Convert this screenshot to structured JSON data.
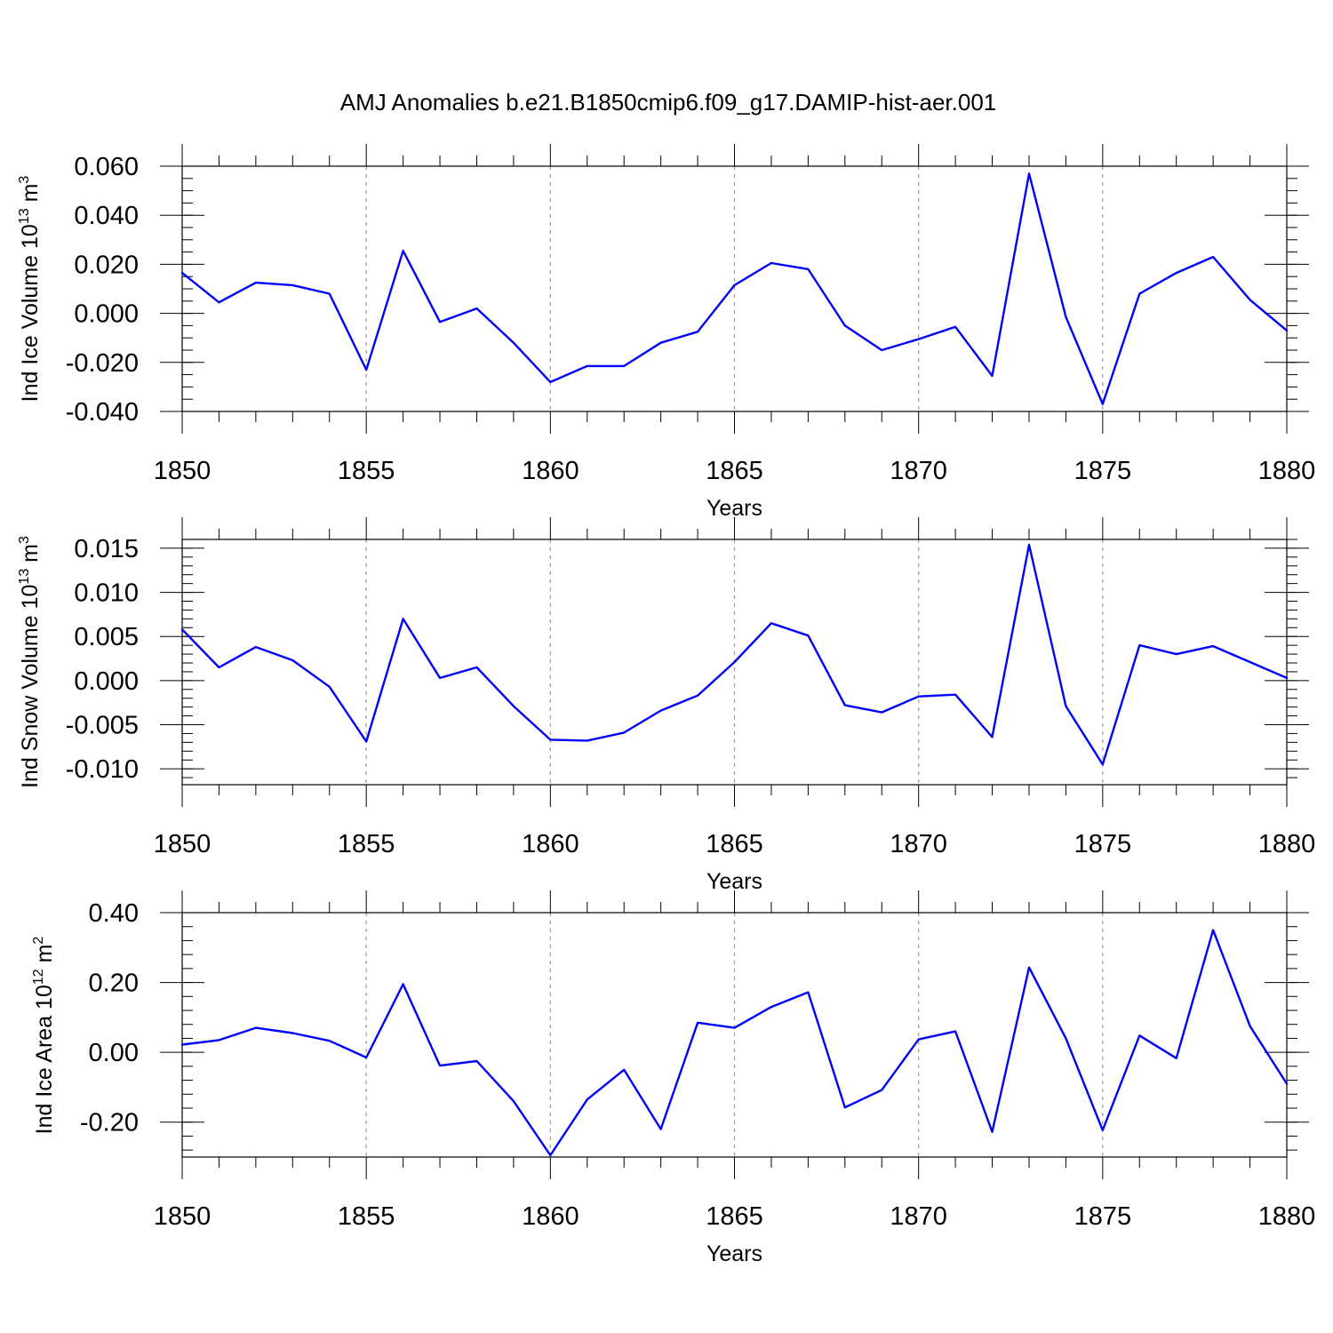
{
  "title": "AMJ Anomalies b.e21.B1850cmip6.f09_g17.DAMIP-hist-aer.001",
  "colors": {
    "line": "#0000ff",
    "grid": "#999999",
    "axes": "#000000"
  },
  "chart_data": [
    {
      "type": "line",
      "xlabel": "Years",
      "ylabel": {
        "prefix": "Ind Ice Volume 10",
        "exponent": "13",
        "unit": " m",
        "unit_exponent": "3"
      },
      "xlim": [
        1850,
        1880
      ],
      "ylim": [
        -0.04,
        0.06
      ],
      "xticks": [
        1850,
        1855,
        1860,
        1865,
        1870,
        1875,
        1880
      ],
      "xtick_labels": [
        "1850",
        "1855",
        "1860",
        "1865",
        "1870",
        "1875",
        "1880"
      ],
      "yticks": [
        0.06,
        0.04,
        0.02,
        0.0,
        -0.02,
        -0.04
      ],
      "ytick_labels": [
        "0.060",
        "0.040",
        "0.020",
        "0.000",
        "-0.020",
        "-0.040"
      ],
      "y_minor_step": 0.005,
      "grid": "dashed vertical at major x ticks",
      "x": [
        1850,
        1851,
        1852,
        1853,
        1854,
        1855,
        1856,
        1857,
        1858,
        1859,
        1860,
        1861,
        1862,
        1863,
        1864,
        1865,
        1866,
        1867,
        1868,
        1869,
        1870,
        1871,
        1872,
        1873,
        1874,
        1875,
        1876,
        1877,
        1878,
        1879,
        1880
      ],
      "values": [
        0.0165,
        0.0045,
        0.0125,
        0.0115,
        0.008,
        -0.023,
        0.0255,
        -0.0035,
        0.002,
        -0.012,
        -0.028,
        -0.0215,
        -0.0215,
        -0.012,
        -0.0075,
        0.0115,
        0.0205,
        0.018,
        -0.005,
        -0.015,
        -0.0105,
        -0.0055,
        -0.0255,
        0.057,
        -0.0015,
        -0.037,
        0.008,
        0.0165,
        0.023,
        0.0055,
        -0.007
      ]
    },
    {
      "type": "line",
      "xlabel": "Years",
      "ylabel": {
        "prefix": "Ind Snow Volume 10",
        "exponent": "13",
        "unit": " m",
        "unit_exponent": "3"
      },
      "xlim": [
        1850,
        1880
      ],
      "ylim": [
        -0.0118,
        0.016
      ],
      "xticks": [
        1850,
        1855,
        1860,
        1865,
        1870,
        1875,
        1880
      ],
      "xtick_labels": [
        "1850",
        "1855",
        "1860",
        "1865",
        "1870",
        "1875",
        "1880"
      ],
      "yticks": [
        0.015,
        0.01,
        0.005,
        0.0,
        -0.005,
        -0.01
      ],
      "ytick_labels": [
        "0.015",
        "0.010",
        "0.005",
        "0.000",
        "-0.005",
        "-0.010"
      ],
      "y_minor_step": 0.001,
      "grid": "dashed vertical at major x ticks",
      "x": [
        1850,
        1851,
        1852,
        1853,
        1854,
        1855,
        1856,
        1857,
        1858,
        1859,
        1860,
        1861,
        1862,
        1863,
        1864,
        1865,
        1866,
        1867,
        1868,
        1869,
        1870,
        1871,
        1872,
        1873,
        1874,
        1875,
        1876,
        1877,
        1878,
        1879,
        1880
      ],
      "values": [
        0.0058,
        0.0015,
        0.0038,
        0.0023,
        -0.0007,
        -0.0069,
        0.007,
        0.0003,
        0.0015,
        -0.0029,
        -0.0067,
        -0.0068,
        -0.0059,
        -0.0034,
        -0.0017,
        0.0021,
        0.0065,
        0.0051,
        -0.0028,
        -0.0036,
        -0.0018,
        -0.0016,
        -0.0064,
        0.0154,
        -0.0029,
        -0.0095,
        0.004,
        0.003,
        0.0039,
        0.0021,
        0.0003
      ]
    },
    {
      "type": "line",
      "xlabel": "Years",
      "ylabel": {
        "prefix": "Ind Ice Area 10",
        "exponent": "12",
        "unit": " m",
        "unit_exponent": "2"
      },
      "xlim": [
        1850,
        1880
      ],
      "ylim": [
        -0.3,
        0.4
      ],
      "xticks": [
        1850,
        1855,
        1860,
        1865,
        1870,
        1875,
        1880
      ],
      "xtick_labels": [
        "1850",
        "1855",
        "1860",
        "1865",
        "1870",
        "1875",
        "1880"
      ],
      "yticks": [
        0.4,
        0.2,
        0.0,
        -0.2
      ],
      "ytick_labels": [
        "0.40",
        "0.20",
        "0.00",
        "-0.20"
      ],
      "y_minor_step": 0.04,
      "grid": "dashed vertical at major x ticks",
      "x": [
        1850,
        1851,
        1852,
        1853,
        1854,
        1855,
        1856,
        1857,
        1858,
        1859,
        1860,
        1861,
        1862,
        1863,
        1864,
        1865,
        1866,
        1867,
        1868,
        1869,
        1870,
        1871,
        1872,
        1873,
        1874,
        1875,
        1876,
        1877,
        1878,
        1879,
        1880
      ],
      "values": [
        0.022,
        0.035,
        0.07,
        0.055,
        0.033,
        -0.015,
        0.195,
        -0.038,
        -0.025,
        -0.14,
        -0.295,
        -0.135,
        -0.05,
        -0.22,
        0.085,
        0.07,
        0.13,
        0.172,
        -0.158,
        -0.108,
        0.037,
        0.06,
        -0.228,
        0.243,
        0.04,
        -0.223,
        0.048,
        -0.017,
        0.35,
        0.075,
        -0.09
      ]
    }
  ]
}
